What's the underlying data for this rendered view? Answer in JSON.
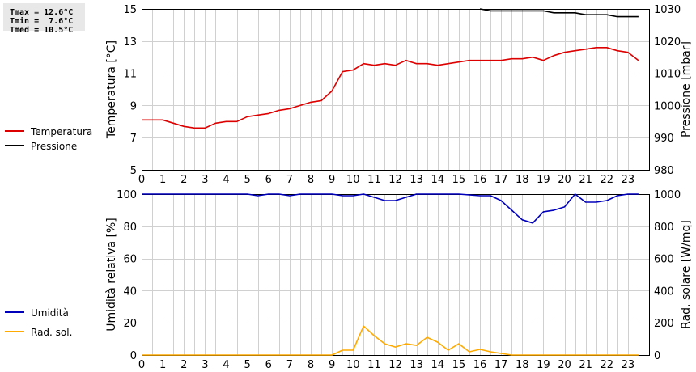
{
  "stats": {
    "tmax": "Tmax = 12.6°C",
    "tmin": "Tmin =  7.6°C",
    "tmed": "Tmed = 10.5°C"
  },
  "chart_data": [
    {
      "type": "line",
      "ylabel_left": "Temperatura [°C]",
      "ylabel_right": "Pressione [mbar]",
      "xlim": [
        0,
        24
      ],
      "x_ticks": [
        "0",
        "1",
        "2",
        "3",
        "4",
        "5",
        "6",
        "7",
        "8",
        "9",
        "10",
        "11",
        "12",
        "13",
        "14",
        "15",
        "16",
        "17",
        "18",
        "19",
        "20",
        "21",
        "22",
        "23"
      ],
      "ylim_left": [
        5,
        15
      ],
      "yticks_left": [
        "15",
        "13",
        "11",
        "9",
        "7",
        "5"
      ],
      "ylim_right": [
        980,
        1030
      ],
      "yticks_right": [
        "1030",
        "1020",
        "1010",
        "1000",
        "990",
        "980"
      ],
      "grid": true,
      "legend_position": "left",
      "series": [
        {
          "name": "Temperatura",
          "axis": "left",
          "color": "#dd0000",
          "x": [
            0,
            1,
            1.5,
            2,
            2.5,
            3,
            3.5,
            4,
            4.5,
            5,
            5.5,
            6,
            6.5,
            7,
            7.5,
            8,
            8.5,
            9,
            9.5,
            10,
            10.5,
            11,
            11.5,
            12,
            12.5,
            13,
            13.5,
            14,
            14.5,
            15,
            15.5,
            16,
            16.5,
            17,
            17.5,
            18,
            18.5,
            19,
            19.5,
            20,
            20.5,
            21,
            21.5,
            22,
            22.5,
            23,
            23.5
          ],
          "values": [
            8.1,
            8.1,
            7.9,
            7.7,
            7.6,
            7.6,
            7.9,
            8.0,
            8.0,
            8.3,
            8.4,
            8.5,
            8.7,
            8.8,
            9.0,
            9.2,
            9.3,
            9.9,
            11.1,
            11.2,
            11.6,
            11.5,
            11.6,
            11.5,
            11.8,
            11.6,
            11.6,
            11.5,
            11.6,
            11.7,
            11.8,
            11.8,
            11.8,
            11.8,
            11.9,
            11.9,
            12.0,
            11.8,
            12.1,
            12.3,
            12.4,
            12.5,
            12.6,
            12.6,
            12.4,
            12.3,
            11.8
          ]
        },
        {
          "name": "Pressione",
          "axis": "right",
          "color": "#000000",
          "x": [
            16,
            16.5,
            17,
            17.5,
            18,
            18.5,
            19,
            19.5,
            20,
            20.5,
            21,
            21.5,
            22,
            22.5,
            23,
            23.5
          ],
          "values": [
            1030,
            1029.4,
            1029.4,
            1029.4,
            1029.4,
            1029.4,
            1029.4,
            1028.8,
            1028.8,
            1028.8,
            1028.2,
            1028.2,
            1028.2,
            1027.6,
            1027.6,
            1027.6
          ]
        }
      ]
    },
    {
      "type": "line",
      "ylabel_left": "Umidità relativa [%]",
      "ylabel_right": "Rad. solare [W/mq]",
      "xlim": [
        0,
        24
      ],
      "x_ticks": [
        "0",
        "1",
        "2",
        "3",
        "4",
        "5",
        "6",
        "7",
        "8",
        "9",
        "10",
        "11",
        "12",
        "13",
        "14",
        "15",
        "16",
        "17",
        "18",
        "19",
        "20",
        "21",
        "22",
        "23"
      ],
      "ylim_left": [
        0,
        100
      ],
      "yticks_left": [
        "100",
        "80",
        "60",
        "40",
        "20",
        "0"
      ],
      "ylim_right": [
        0,
        1000
      ],
      "yticks_right": [
        "1000",
        "800",
        "600",
        "400",
        "200",
        "0"
      ],
      "grid": true,
      "legend_position": "left",
      "series": [
        {
          "name": "Umidità",
          "axis": "left",
          "color": "#0000bb",
          "x": [
            0,
            5,
            5.5,
            6,
            6.5,
            7,
            7.5,
            8,
            9,
            9.5,
            10,
            10.5,
            11,
            11.5,
            12,
            12.5,
            13,
            14,
            15,
            16,
            16.5,
            17,
            17.5,
            18,
            18.5,
            19,
            19.5,
            20,
            20.5,
            21,
            21.5,
            22,
            22.5,
            23,
            23.5
          ],
          "values": [
            100,
            100,
            99,
            100,
            100,
            99,
            100,
            100,
            100,
            99,
            99,
            100,
            98,
            96,
            96,
            98,
            100,
            100,
            100,
            99,
            99,
            96,
            90,
            84,
            82,
            89,
            90,
            92,
            100,
            95,
            95,
            96,
            99,
            100,
            100
          ]
        },
        {
          "name": "Rad. sol.",
          "axis": "right",
          "color": "#ffaa00",
          "x": [
            0,
            9,
            9.5,
            10,
            10.5,
            11,
            11.5,
            12,
            12.5,
            13,
            13.5,
            14,
            14.5,
            15,
            15.5,
            16,
            16.5,
            17,
            17.5,
            23.5
          ],
          "values": [
            0,
            0,
            30,
            30,
            180,
            120,
            70,
            50,
            70,
            60,
            110,
            80,
            30,
            70,
            20,
            35,
            20,
            10,
            0,
            0
          ]
        }
      ]
    }
  ]
}
